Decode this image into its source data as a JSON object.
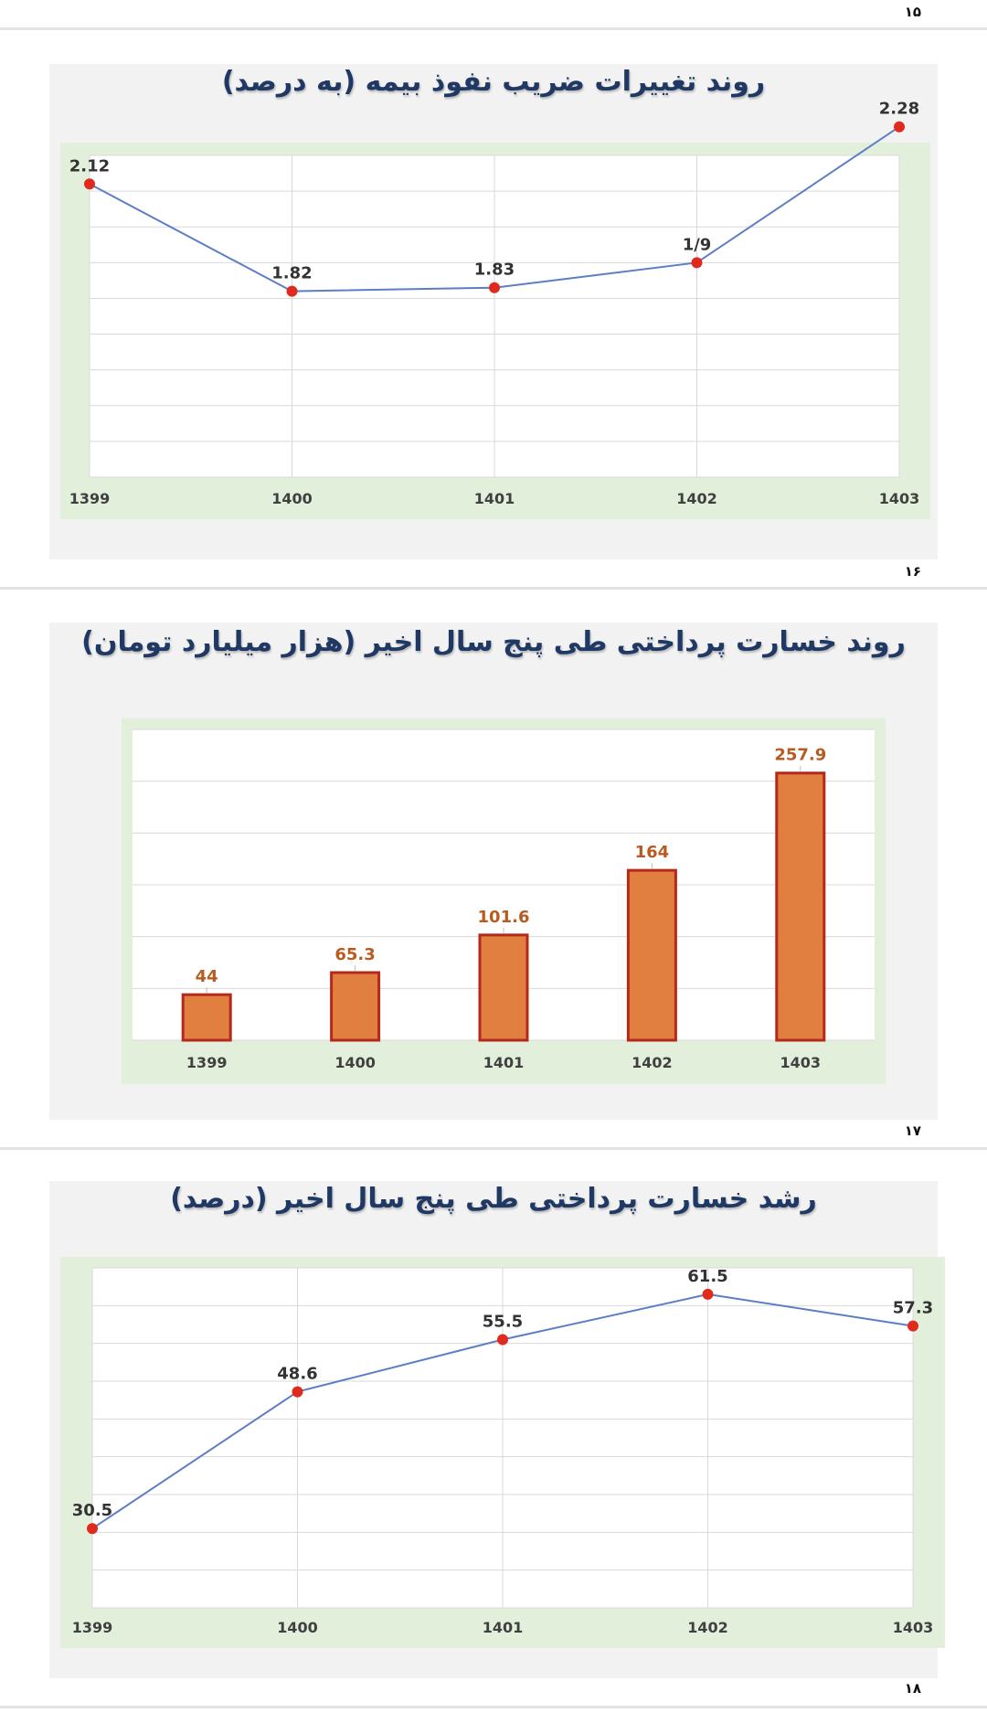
{
  "page_numbers": [
    "۱۵",
    "۱۶",
    "۱۷",
    "۱۸"
  ],
  "colors": {
    "title": "#1f3864",
    "plot_background": "#e2efda",
    "line": "#5b7ec4",
    "marker": "#e02a1e",
    "bar_fill": "#e07f3f",
    "bar_border": "#b5281c",
    "bar_label": "#b85b20",
    "point_label": "#333333"
  },
  "chart_data": [
    {
      "type": "line",
      "title": "روند تغییرات ضریب نفوذ بیمه (به درصد)",
      "categories": [
        "1399",
        "1400",
        "1401",
        "1402",
        "1403"
      ],
      "values": [
        2.12,
        1.82,
        1.83,
        1.9,
        2.28
      ],
      "data_labels": [
        "2.12",
        "1.82",
        "1.83",
        "1/9",
        "2.28"
      ],
      "ylim": [
        1.3,
        2.2
      ],
      "grid": true,
      "legend": "none"
    },
    {
      "type": "bar",
      "title": "روند خسارت پرداختی طی پنج سال اخیر (هزار میلیارد تومان)",
      "categories": [
        "1399",
        "1400",
        "1401",
        "1402",
        "1403"
      ],
      "values": [
        44,
        65.3,
        101.6,
        164,
        257.9
      ],
      "data_labels": [
        "44",
        "65.3",
        "101.6",
        "164",
        "257.9"
      ],
      "ylim": [
        0,
        300
      ],
      "grid": true,
      "legend": "none"
    },
    {
      "type": "line",
      "title": "رشد خسارت پرداختی طی پنج سال اخیر (درصد)",
      "categories": [
        "1399",
        "1400",
        "1401",
        "1402",
        "1403"
      ],
      "values": [
        30.5,
        48.6,
        55.5,
        61.5,
        57.3
      ],
      "data_labels": [
        "30.5",
        "48.6",
        "55.5",
        "61.5",
        "57.3"
      ],
      "ylim": [
        20,
        65
      ],
      "grid": true,
      "legend": "none"
    }
  ]
}
